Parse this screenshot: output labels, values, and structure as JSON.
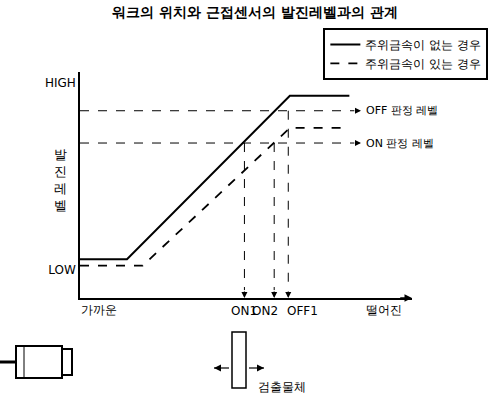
{
  "chart_data": {
    "type": "line",
    "title": "워크의 위치와 근접센서의 발진레벨과의 관계",
    "ylabel": "발진레벨",
    "xlim": [
      0,
      106
    ],
    "ylim": [
      0,
      105
    ],
    "xticks": [
      {
        "value": 6,
        "label": "가까운"
      },
      {
        "value": 97,
        "label": "떨어진"
      }
    ],
    "yticks": [
      {
        "value": 13,
        "label": "LOW"
      },
      {
        "value": 100,
        "label": "HIGH"
      }
    ],
    "series": [
      {
        "name": "주위금속이 없는 경우",
        "color": "#000000",
        "line_style": "solid",
        "x": [
          0,
          15,
          67,
          86
        ],
        "values": [
          18,
          18,
          94,
          94
        ]
      },
      {
        "name": "주위금속이 있는 경우",
        "color": "#000000",
        "line_style": "dash",
        "x": [
          0,
          20,
          67,
          86
        ],
        "values": [
          15,
          15,
          79,
          79
        ]
      }
    ],
    "levels": [
      {
        "label": "OFF 판정 레벨",
        "value": 87
      },
      {
        "label": "ON 판정 레벨",
        "value": 72
      }
    ],
    "switch_points": [
      {
        "label": "ON1",
        "x": 52.5,
        "y": 72
      },
      {
        "label": "ON2",
        "x": 62,
        "y": 72
      },
      {
        "label": "OFF1",
        "x": 66.5,
        "y": 87
      }
    ],
    "object_label": "검출물체",
    "legend": "top right",
    "grid": false
  }
}
